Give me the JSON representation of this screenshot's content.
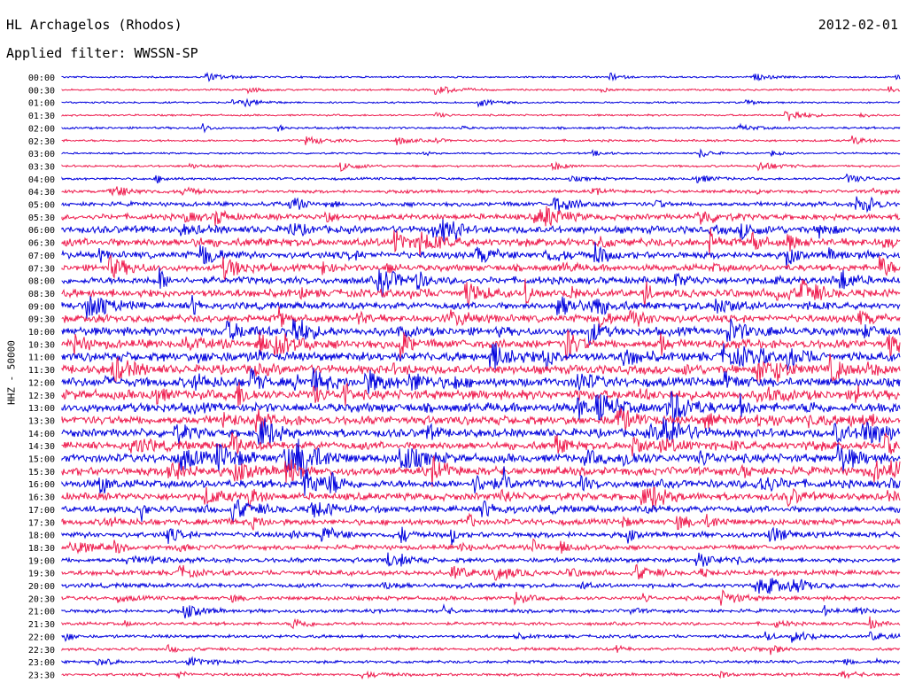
{
  "header": {
    "station": "HL Archagelos (Rhodos)",
    "date": "2012-02-01",
    "filter_label": "Applied filter:",
    "filter_value": "WWSSN-SP"
  },
  "chart_data": {
    "type": "line",
    "ylabel": "HHZ - 50000",
    "row_labels": [
      "00:00",
      "00:30",
      "01:00",
      "01:30",
      "02:00",
      "02:30",
      "03:00",
      "03:30",
      "04:00",
      "04:30",
      "05:00",
      "05:30",
      "06:00",
      "06:30",
      "07:00",
      "07:30",
      "08:00",
      "08:30",
      "09:00",
      "09:30",
      "10:00",
      "10:30",
      "11:00",
      "11:30",
      "12:00",
      "12:30",
      "13:00",
      "13:30",
      "14:00",
      "14:30",
      "15:00",
      "15:30",
      "16:00",
      "16:30",
      "17:00",
      "17:30",
      "18:00",
      "18:30",
      "19:00",
      "19:30",
      "20:00",
      "20:30",
      "21:00",
      "21:30",
      "22:00",
      "22:30",
      "23:00",
      "23:30"
    ],
    "row_noise_level": [
      0.5,
      0.5,
      0.5,
      0.5,
      0.6,
      0.6,
      0.5,
      0.6,
      0.7,
      0.9,
      1.2,
      1.6,
      2.0,
      2.2,
      1.9,
      1.8,
      2.0,
      2.2,
      1.9,
      2.0,
      2.3,
      2.4,
      2.5,
      2.4,
      2.5,
      2.6,
      2.5,
      2.4,
      2.3,
      2.2,
      2.4,
      2.3,
      2.2,
      2.0,
      1.8,
      1.6,
      1.5,
      1.3,
      1.3,
      1.4,
      1.2,
      1.1,
      1.0,
      0.9,
      0.9,
      0.8,
      0.8,
      0.8
    ],
    "colors": [
      "#0000dd",
      "#ee1c4e"
    ]
  }
}
